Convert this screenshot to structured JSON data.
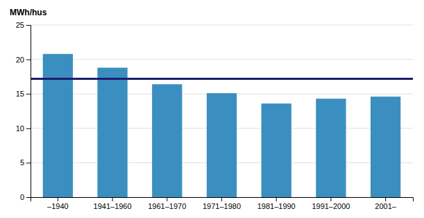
{
  "chart_data": {
    "type": "bar",
    "ylabel": "MWh/hus",
    "categories": [
      "–1940",
      "1941–1960",
      "1961–1970",
      "1971–1980",
      "1981–1990",
      "1991–2000",
      "2001–"
    ],
    "values": [
      20.8,
      18.8,
      16.4,
      15.1,
      13.6,
      14.3,
      14.6
    ],
    "color": "#3A8FC0",
    "reference_line": {
      "value": 17.2,
      "color": "#1C1C6E"
    },
    "ylim": [
      0,
      25
    ],
    "yticks": [
      0,
      5,
      10,
      15,
      20,
      25
    ],
    "grid": true
  }
}
